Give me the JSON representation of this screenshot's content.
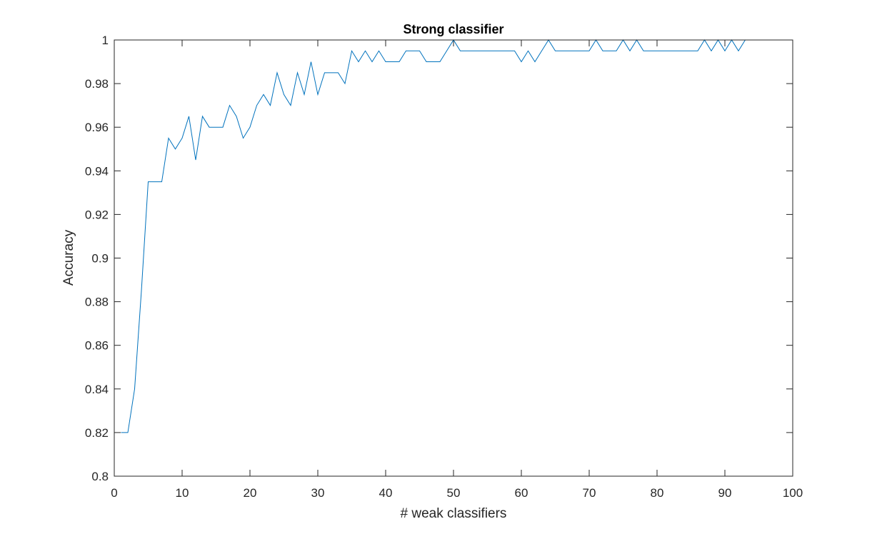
{
  "chart_data": {
    "type": "line",
    "title": "Strong classifier",
    "xlabel": "# weak classifiers",
    "ylabel": "Accuracy",
    "xlim": [
      0,
      100
    ],
    "ylim": [
      0.8,
      1
    ],
    "grid": false,
    "xticks": [
      0,
      10,
      20,
      30,
      40,
      50,
      60,
      70,
      80,
      90,
      100
    ],
    "xtick_labels": [
      "0",
      "10",
      "20",
      "30",
      "40",
      "50",
      "60",
      "70",
      "80",
      "90",
      "100"
    ],
    "yticks": [
      0.8,
      0.82,
      0.84,
      0.86,
      0.88,
      0.9,
      0.92,
      0.94,
      0.96,
      0.98,
      1
    ],
    "ytick_labels": [
      "0.8",
      "0.82",
      "0.84",
      "0.86",
      "0.88",
      "0.9",
      "0.92",
      "0.94",
      "0.96",
      "0.98",
      "1"
    ],
    "series": [
      {
        "color": "#0072BD",
        "x": [
          1,
          2,
          3,
          4,
          5,
          6,
          7,
          8,
          9,
          10,
          11,
          12,
          13,
          14,
          15,
          16,
          17,
          18,
          19,
          20,
          21,
          22,
          23,
          24,
          25,
          26,
          27,
          28,
          29,
          30,
          31,
          32,
          33,
          34,
          35,
          36,
          37,
          38,
          39,
          40,
          41,
          42,
          43,
          44,
          45,
          46,
          47,
          48,
          49,
          50,
          51,
          52,
          53,
          54,
          55,
          56,
          57,
          58,
          59,
          60,
          61,
          62,
          63,
          64,
          65,
          66,
          67,
          68,
          69,
          70,
          71,
          72,
          73,
          74,
          75,
          76,
          77,
          78,
          79,
          80,
          81,
          82,
          83,
          84,
          85,
          86,
          87,
          88,
          89,
          90,
          91,
          92,
          93,
          94,
          95,
          96,
          97,
          98,
          99,
          100
        ],
        "y": [
          0.82,
          0.82,
          0.84,
          0.885,
          0.935,
          0.935,
          0.935,
          0.955,
          0.95,
          0.955,
          0.965,
          0.945,
          0.965,
          0.96,
          0.96,
          0.96,
          0.97,
          0.965,
          0.955,
          0.96,
          0.97,
          0.975,
          0.97,
          0.985,
          0.975,
          0.97,
          0.985,
          0.975,
          0.99,
          0.975,
          0.985,
          0.985,
          0.985,
          0.98,
          0.995,
          0.99,
          0.995,
          0.99,
          0.995,
          0.99,
          0.99,
          0.99,
          0.995,
          0.995,
          0.995,
          0.99,
          0.99,
          0.99,
          0.995,
          1,
          0.995,
          0.995,
          0.995,
          0.995,
          0.995,
          0.995,
          0.995,
          0.995,
          0.995,
          0.99,
          0.995,
          0.99,
          0.995,
          1,
          0.995,
          0.995,
          0.995,
          0.995,
          0.995,
          0.995,
          1,
          0.995,
          0.995,
          0.995,
          1,
          0.995,
          1,
          0.995,
          0.995,
          0.995,
          0.995,
          0.995,
          0.995,
          0.995,
          0.995,
          0.995,
          1,
          0.995,
          1,
          0.995,
          1,
          0.995,
          1,
          1,
          1,
          1,
          1,
          1,
          1,
          1
        ]
      }
    ]
  }
}
